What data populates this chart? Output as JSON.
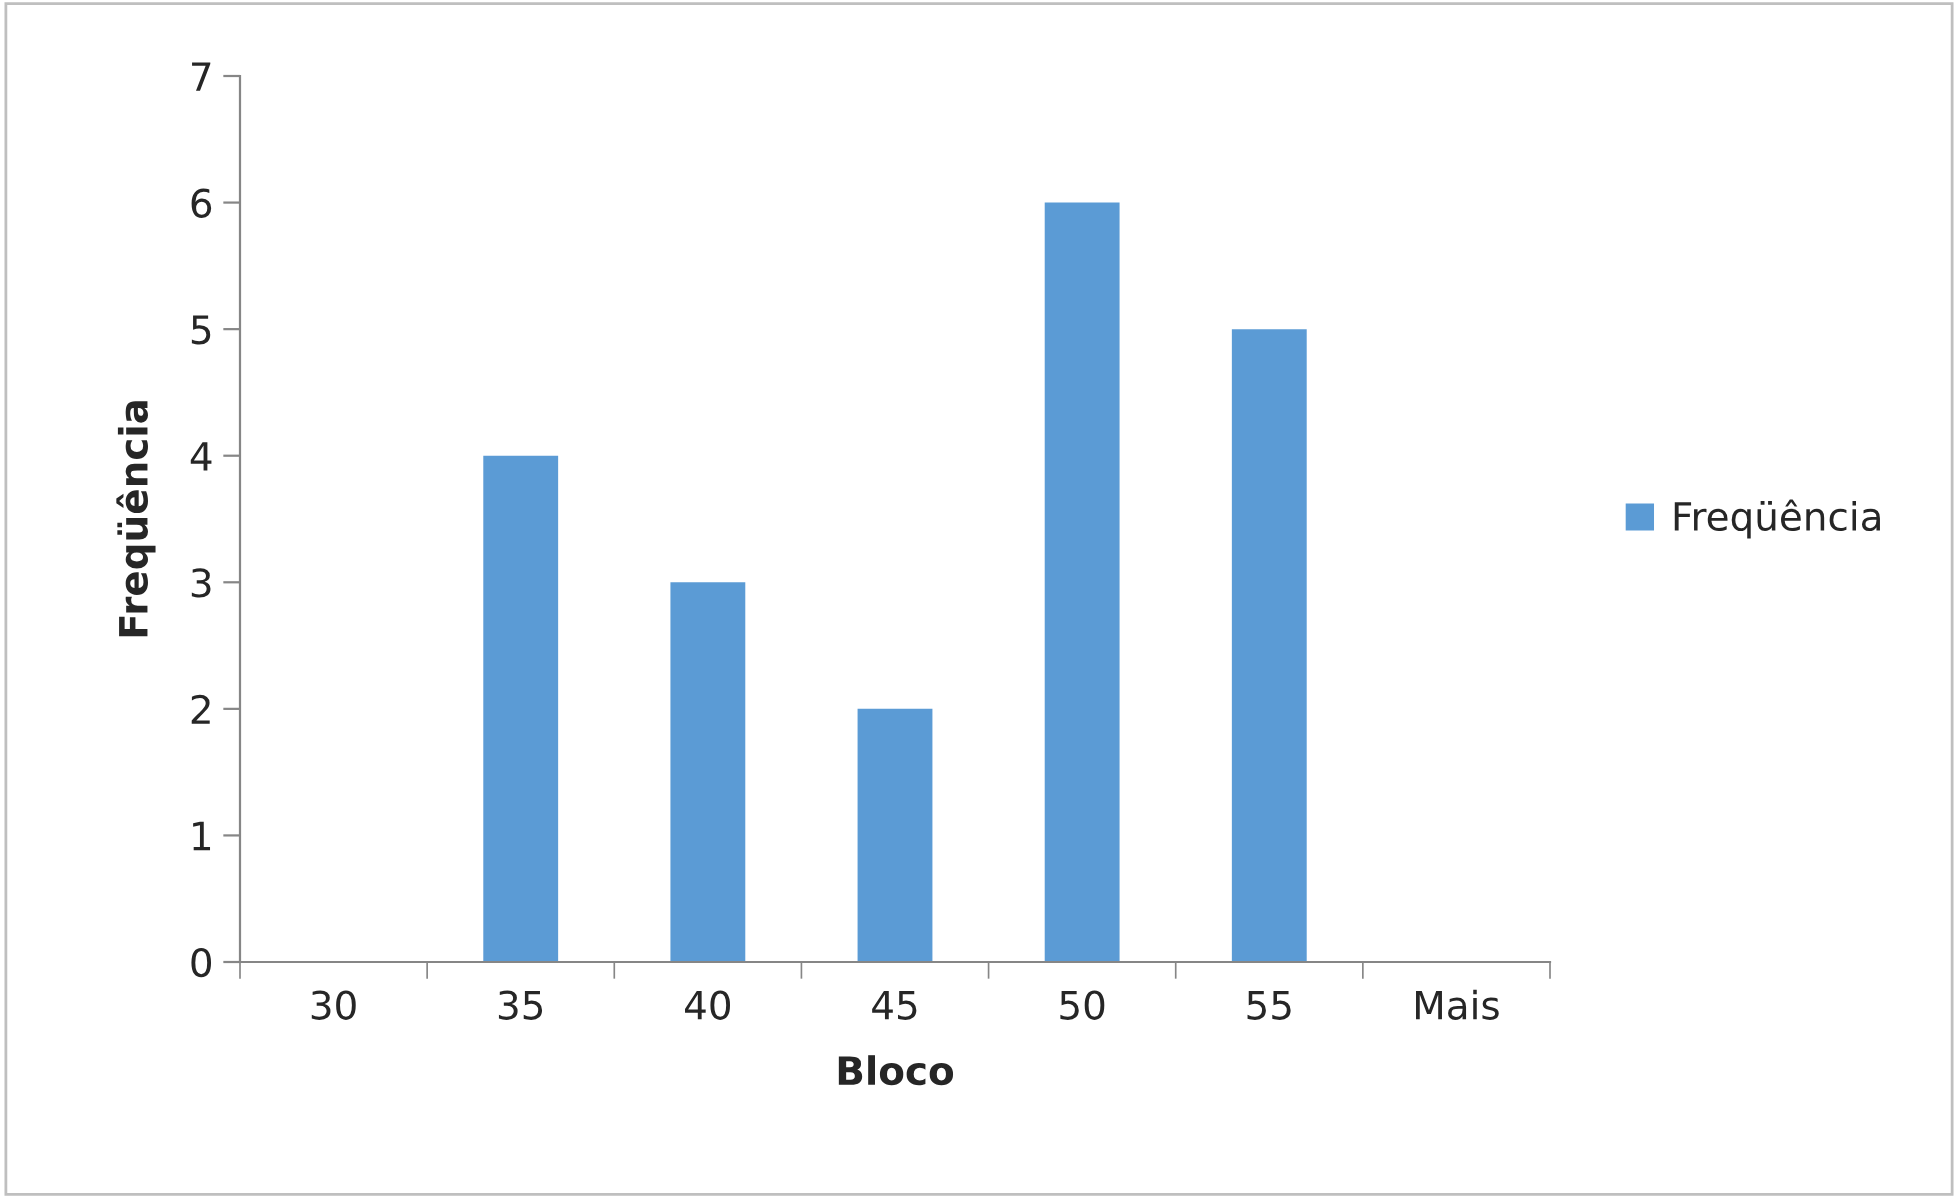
{
  "chart_data": {
    "type": "bar",
    "xlabel": "Bloco",
    "ylabel": "Freqüência",
    "categories": [
      "30",
      "35",
      "40",
      "45",
      "50",
      "55",
      "Mais"
    ],
    "series": [
      {
        "name": "Freqüência",
        "color": "#5b9bd5",
        "values": [
          0,
          4,
          3,
          2,
          6,
          5,
          0
        ]
      }
    ],
    "ylim": [
      0,
      7
    ],
    "yticks": [
      0,
      1,
      2,
      3,
      4,
      5,
      6,
      7
    ],
    "grid": false,
    "legend": "right"
  }
}
